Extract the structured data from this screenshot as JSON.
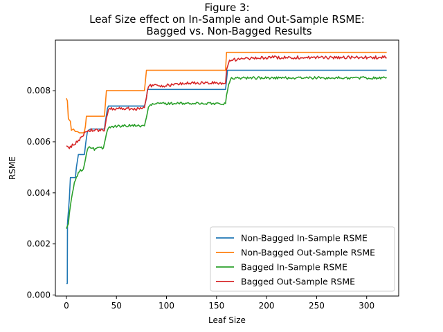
{
  "chart_data": {
    "type": "line",
    "title_lines": [
      "Figure 3:",
      "Leaf Size effect on In-Sample and Out-Sample RSME:",
      "Bagged vs. Non-Bagged Results"
    ],
    "xlabel": "Leaf Size",
    "ylabel": "RSME",
    "xlim": [
      -11,
      332
    ],
    "ylim": [
      -4e-05,
      0.00998
    ],
    "x_ticks": [
      0,
      50,
      100,
      150,
      200,
      250,
      300
    ],
    "x_tick_labels": [
      "0",
      "50",
      "100",
      "150",
      "200",
      "250",
      "300"
    ],
    "y_ticks": [
      0.0,
      0.002,
      0.004,
      0.006,
      0.008
    ],
    "y_tick_labels": [
      "0.000",
      "0.002",
      "0.004",
      "0.006",
      "0.008"
    ],
    "legend_position": "lower-right",
    "series": [
      {
        "name": "Non-Bagged In-Sample RSME",
        "color": "#1f77b4",
        "points": [
          [
            0,
            0.00045
          ],
          [
            0.9,
            0.00045
          ],
          [
            1.1,
            0.0028
          ],
          [
            3,
            0.0038
          ],
          [
            4,
            0.0046
          ],
          [
            9,
            0.0046
          ],
          [
            10,
            0.005
          ],
          [
            12,
            0.0055
          ],
          [
            18,
            0.0055
          ],
          [
            19.5,
            0.006
          ],
          [
            21,
            0.0064
          ],
          [
            24,
            0.0065
          ],
          [
            38,
            0.0065
          ],
          [
            39,
            0.0068
          ],
          [
            41,
            0.0073
          ],
          [
            42,
            0.0074
          ],
          [
            78,
            0.0074
          ],
          [
            80,
            0.0077
          ],
          [
            81,
            0.00805
          ],
          [
            159,
            0.00805
          ],
          [
            160,
            0.0084
          ],
          [
            161,
            0.0088
          ],
          [
            320,
            0.0088
          ]
        ]
      },
      {
        "name": "Non-Bagged Out-Sample RSME",
        "color": "#ff7f0e",
        "points": [
          [
            0,
            0.0077
          ],
          [
            1,
            0.0076
          ],
          [
            2,
            0.0069
          ],
          [
            4,
            0.0068
          ],
          [
            5,
            0.00645
          ],
          [
            7,
            0.0065
          ],
          [
            9,
            0.0064
          ],
          [
            11,
            0.0064
          ],
          [
            13,
            0.00635
          ],
          [
            17,
            0.00635
          ],
          [
            18,
            0.0064
          ],
          [
            19,
            0.0066
          ],
          [
            20,
            0.007
          ],
          [
            38,
            0.007
          ],
          [
            40,
            0.008
          ],
          [
            78,
            0.008
          ],
          [
            80,
            0.0088
          ],
          [
            159,
            0.0088
          ],
          [
            160,
            0.0095
          ],
          [
            320,
            0.0095
          ]
        ]
      },
      {
        "name": "Bagged In-Sample RSME",
        "color": "#2ca02c",
        "base": [
          [
            0,
            0.0026
          ],
          [
            2,
            0.0028
          ],
          [
            4,
            0.0035
          ],
          [
            6,
            0.004
          ],
          [
            8,
            0.0044
          ],
          [
            10,
            0.0046
          ],
          [
            12,
            0.0048
          ],
          [
            15,
            0.0049
          ],
          [
            17,
            0.0049
          ],
          [
            19,
            0.0053
          ],
          [
            21,
            0.0057
          ],
          [
            24,
            0.0058
          ],
          [
            28,
            0.0057
          ],
          [
            31,
            0.0058
          ],
          [
            34,
            0.00575
          ],
          [
            37,
            0.00575
          ],
          [
            39,
            0.0061
          ],
          [
            41,
            0.0065
          ],
          [
            45,
            0.0066
          ],
          [
            60,
            0.00663
          ],
          [
            70,
            0.00665
          ],
          [
            78,
            0.0066
          ],
          [
            80,
            0.007
          ],
          [
            82,
            0.0074
          ],
          [
            90,
            0.0075
          ],
          [
            120,
            0.0075
          ],
          [
            150,
            0.0075
          ],
          [
            159,
            0.0075
          ],
          [
            160,
            0.0078
          ],
          [
            162,
            0.0082
          ],
          [
            165,
            0.0085
          ],
          [
            180,
            0.0085
          ],
          [
            250,
            0.0085
          ],
          [
            320,
            0.0085
          ]
        ],
        "noise_amplitude": 5e-05
      },
      {
        "name": "Bagged Out-Sample RSME",
        "color": "#d62728",
        "base": [
          [
            0,
            0.0058
          ],
          [
            3,
            0.00578
          ],
          [
            8,
            0.0059
          ],
          [
            12,
            0.00605
          ],
          [
            16,
            0.0062
          ],
          [
            19,
            0.0064
          ],
          [
            21,
            0.00645
          ],
          [
            38,
            0.00645
          ],
          [
            40,
            0.0069
          ],
          [
            42,
            0.0073
          ],
          [
            78,
            0.0073
          ],
          [
            80,
            0.0078
          ],
          [
            82,
            0.0082
          ],
          [
            100,
            0.0082
          ],
          [
            120,
            0.0083
          ],
          [
            159,
            0.0083
          ],
          [
            160,
            0.0088
          ],
          [
            163,
            0.0092
          ],
          [
            200,
            0.0093
          ],
          [
            320,
            0.0093
          ]
        ],
        "noise_amplitude": 6e-05
      }
    ]
  }
}
